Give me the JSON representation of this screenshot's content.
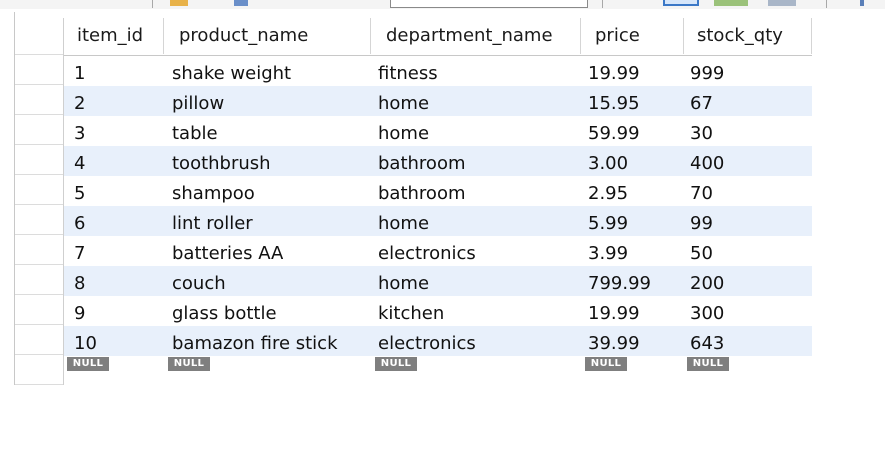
{
  "colors": {
    "alt_row": "#e8f0fb",
    "null_badge": "#7f7f7f",
    "grid_line": "#d5d5d5"
  },
  "toolbar": {
    "icons": [
      "folder-icon",
      "search-icon",
      "grid-view-icon",
      "table-view-icon",
      "form-view-icon"
    ]
  },
  "table": {
    "columns": [
      "item_id",
      "product_name",
      "department_name",
      "price",
      "stock_qty"
    ],
    "rows": [
      [
        "1",
        "shake weight",
        "fitness",
        "19.99",
        "999"
      ],
      [
        "2",
        "pillow",
        "home",
        "15.95",
        "67"
      ],
      [
        "3",
        "table",
        "home",
        "59.99",
        "30"
      ],
      [
        "4",
        "toothbrush",
        "bathroom",
        "3.00",
        "400"
      ],
      [
        "5",
        "shampoo",
        "bathroom",
        "2.95",
        "70"
      ],
      [
        "6",
        "lint roller",
        "home",
        "5.99",
        "99"
      ],
      [
        "7",
        "batteries AA",
        "electronics",
        "3.99",
        "50"
      ],
      [
        "8",
        "couch",
        "home",
        "799.99",
        "200"
      ],
      [
        "9",
        "glass bottle",
        "kitchen",
        "19.99",
        "300"
      ],
      [
        "10",
        "bamazon fire stick",
        "electronics",
        "39.99",
        "643"
      ]
    ],
    "null_label": "NULL"
  }
}
